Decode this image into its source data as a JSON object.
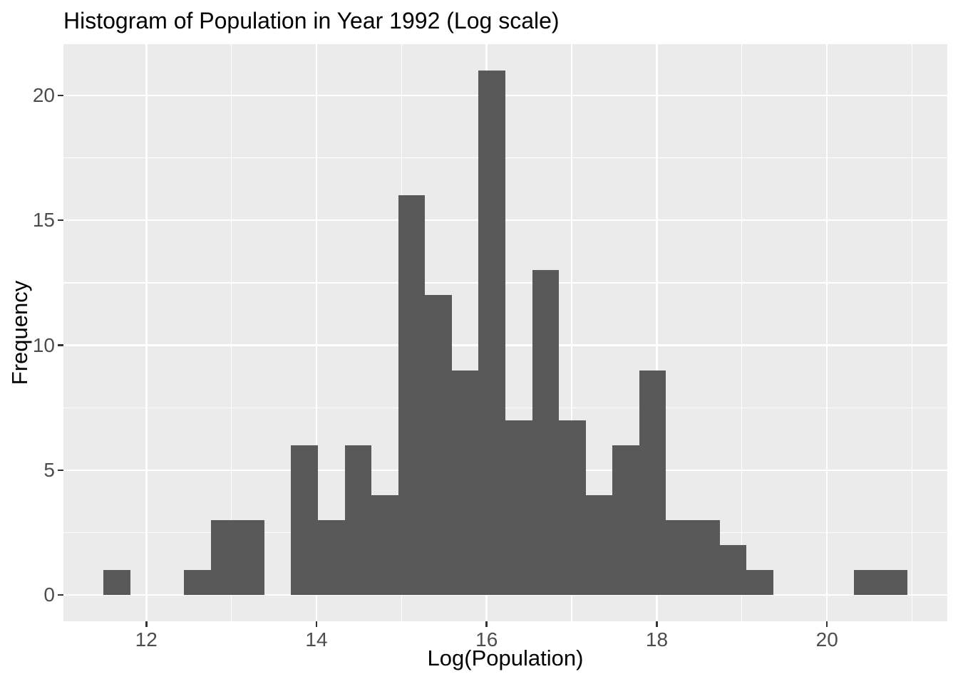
{
  "chart_data": {
    "type": "bar",
    "subtype": "histogram",
    "title": "Histogram of Population in Year 1992 (Log scale)",
    "xlabel": "Log(Population)",
    "ylabel": "Frequency",
    "bins": {
      "start": 11.498,
      "width": 0.3148,
      "count": 30
    },
    "counts": [
      1,
      0,
      0,
      1,
      3,
      3,
      0,
      6,
      3,
      6,
      4,
      16,
      12,
      9,
      21,
      7,
      13,
      7,
      4,
      6,
      9,
      3,
      3,
      2,
      1,
      0,
      0,
      0,
      1,
      1
    ],
    "xlim": [
      11.026,
      21.414
    ],
    "ylim": [
      -1.05,
      22.05
    ],
    "x_major_ticks": [
      12,
      14,
      16,
      18,
      20
    ],
    "x_minor_ticks": [
      13,
      15,
      17,
      19,
      21
    ],
    "y_major_ticks": [
      0,
      5,
      10,
      15,
      20
    ],
    "y_minor_ticks": [
      2.5,
      7.5,
      12.5,
      17.5
    ],
    "x_tick_labels": [
      "12",
      "14",
      "16",
      "18",
      "20"
    ],
    "y_tick_labels": [
      "0",
      "5",
      "10",
      "15",
      "20"
    ],
    "grid": true,
    "legend_position": "none",
    "colors": {
      "bar_fill": "#595959",
      "panel_background": "#EBEBEB",
      "gridline": "#FFFFFF",
      "tick_mark": "#333333",
      "tick_label": "#4D4D4D",
      "title_text": "#000000",
      "axis_label_text": "#000000",
      "page_background": "#FFFFFF"
    }
  }
}
